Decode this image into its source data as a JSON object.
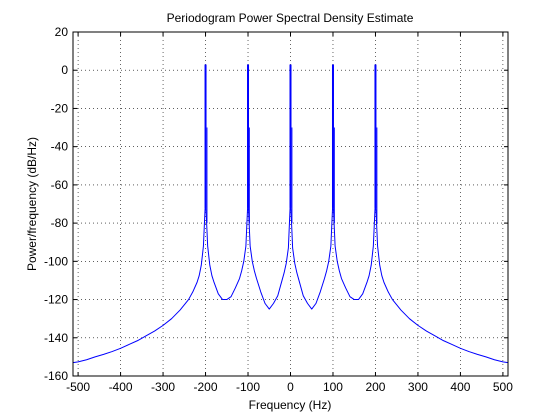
{
  "chart_data": {
    "type": "line",
    "title": "Periodogram Power Spectral Density Estimate",
    "xlabel": "Frequency (Hz)",
    "ylabel": "Power/frequency (dB/Hz)",
    "xlim": [
      -512,
      512
    ],
    "ylim": [
      -160,
      20
    ],
    "xticks": [
      -500,
      -400,
      -300,
      -200,
      -100,
      0,
      100,
      200,
      300,
      400,
      500
    ],
    "yticks": [
      -160,
      -140,
      -120,
      -100,
      -80,
      -60,
      -40,
      -20,
      0,
      20
    ],
    "grid": true,
    "grid_style": "dotted",
    "line_color": "#0000ff",
    "peaks_hz": [
      -200,
      -100,
      0,
      100,
      200
    ],
    "peak_level_db": 3,
    "series": [
      {
        "x": [
          -512,
          -500,
          -480,
          -460,
          -440,
          -420,
          -400,
          -380,
          -360,
          -340,
          -320,
          -300,
          -280,
          -260,
          -240,
          -230,
          -220,
          -215,
          -210,
          -205,
          -201,
          -199,
          -195,
          -190,
          -185,
          -180,
          -170,
          -160,
          -150,
          -140,
          -130,
          -120,
          -115,
          -110,
          -105,
          -101,
          -99,
          -95,
          -90,
          -85,
          -80,
          -70,
          -60,
          -50,
          -40,
          -30,
          -20,
          -15,
          -10,
          -5,
          -1,
          1,
          5,
          10,
          15,
          20,
          30,
          40,
          50,
          60,
          70,
          80,
          85,
          90,
          95,
          99,
          101,
          105,
          110,
          115,
          120,
          130,
          140,
          150,
          160,
          170,
          180,
          185,
          190,
          195,
          199,
          201,
          205,
          210,
          215,
          220,
          230,
          240,
          260,
          280,
          300,
          320,
          340,
          360,
          380,
          400,
          420,
          440,
          460,
          480,
          500,
          512
        ],
        "y": [
          -153,
          -152.6,
          -151.5,
          -150,
          -148.7,
          -147.2,
          -145.5,
          -143.5,
          -141.5,
          -139,
          -136.5,
          -133.5,
          -130,
          -125.5,
          -120,
          -116,
          -111,
          -107.5,
          -102,
          -92,
          -72,
          -72,
          -92,
          -102,
          -107.5,
          -111,
          -117,
          -120,
          -120,
          -118.5,
          -114,
          -109,
          -105,
          -100,
          -92,
          -72,
          -72,
          -92,
          -100,
          -105,
          -109,
          -116,
          -122,
          -125,
          -122,
          -118,
          -110,
          -106,
          -101,
          -93,
          -72,
          -72,
          -93,
          -101,
          -106,
          -110,
          -118,
          -122,
          -125,
          -122,
          -116,
          -109,
          -105,
          -100,
          -92,
          -72,
          -72,
          -92,
          -100,
          -105,
          -109,
          -114,
          -118.5,
          -120,
          -120,
          -117,
          -111,
          -107.5,
          -102,
          -92,
          -72,
          -72,
          -92,
          -102,
          -107.5,
          -111,
          -116,
          -120,
          -125.5,
          -130,
          -133.5,
          -136.5,
          -139,
          -141.5,
          -143.5,
          -145.5,
          -147.2,
          -148.7,
          -150,
          -151.5,
          -152.6,
          -153
        ]
      }
    ]
  }
}
